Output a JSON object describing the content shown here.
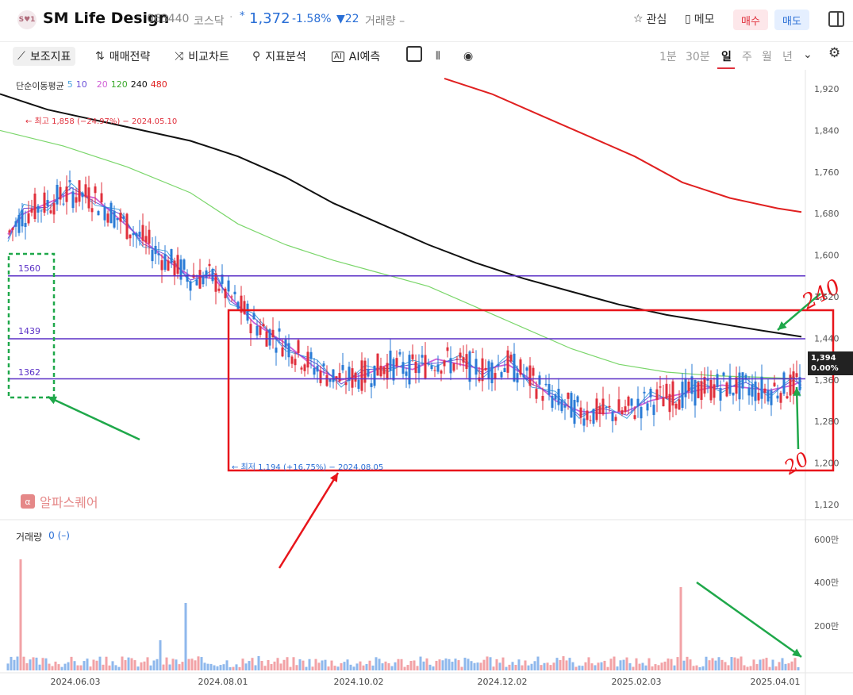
{
  "header": {
    "logo_text": "S♥1",
    "name": "SM Life Design",
    "code": "063440",
    "market": "코스닥",
    "separator": "·",
    "star": "*",
    "price": "1,372",
    "change_pct": "-1.58%",
    "change_abs": "▼22",
    "volume_label": "거래량 –",
    "fav_label": "관심",
    "memo_label": "메모",
    "buy_label": "매수",
    "sell_label": "매도"
  },
  "toolbar": {
    "indicators": "보조지표",
    "strategy": "매매전략",
    "compare": "비교차트",
    "analysis": "지표분석",
    "ai": "AI예측",
    "periods": [
      "1분",
      "30분",
      "일",
      "주",
      "월",
      "년"
    ],
    "active_period": "일"
  },
  "ma_legend": {
    "label": "단순이동평균",
    "ma5": "5",
    "ma10": "10",
    "ma20": "20",
    "ma120": "120",
    "ma240": "240",
    "ma480": "480",
    "colors": {
      "ma5": "#4aa3df",
      "ma10": "#6a4fd8",
      "ma20": "#d05ed6",
      "ma120": "#7ad66a",
      "ma240": "#111111",
      "ma480": "#e02020"
    }
  },
  "volume_legend": {
    "label": "거래량",
    "value": "0 (–)"
  },
  "watermark": {
    "icon": "α",
    "text": "알파스퀘어"
  },
  "current_price_tag": {
    "price": "1,394",
    "change": "0.00%"
  },
  "annotations": {
    "high": "← 최고 1,858 (−24.97%) − 2024.05.10",
    "low": "← 최저 1,194 (+16.75%) − 2024.08.05",
    "line_1560": "1560",
    "line_1439": "1439",
    "line_1362": "1362",
    "hand_240": "240",
    "hand_20": "20"
  },
  "chart_data": {
    "type": "candlestick",
    "y_ticks": [
      "1,920",
      "1,840",
      "1,760",
      "1,680",
      "1,600",
      "1,520",
      "1,440",
      "1,360",
      "1,280",
      "1,200",
      "1,120"
    ],
    "ylim": [
      1080,
      1940
    ],
    "x_ticks": [
      "2024.06.03",
      "2024.08.01",
      "2024.10.02",
      "2024.12.02",
      "2025.02.03",
      "2025.04.01"
    ],
    "volume_ticks": [
      "600만",
      "400만",
      "200만"
    ],
    "horizontal_lines": [
      1560,
      1439,
      1362
    ],
    "rectangle": {
      "y_top": 1496,
      "y_bottom": 1194
    },
    "ma240": [
      [
        0,
        1910
      ],
      [
        60,
        1880
      ],
      [
        120,
        1860
      ],
      [
        180,
        1840
      ],
      [
        240,
        1820
      ],
      [
        300,
        1790
      ],
      [
        360,
        1750
      ],
      [
        420,
        1700
      ],
      [
        480,
        1660
      ],
      [
        540,
        1620
      ],
      [
        600,
        1585
      ],
      [
        660,
        1555
      ],
      [
        720,
        1530
      ],
      [
        780,
        1505
      ],
      [
        840,
        1485
      ],
      [
        900,
        1470
      ],
      [
        960,
        1455
      ],
      [
        1010,
        1443
      ]
    ],
    "ma120": [
      [
        0,
        1840
      ],
      [
        80,
        1810
      ],
      [
        160,
        1770
      ],
      [
        240,
        1720
      ],
      [
        300,
        1660
      ],
      [
        360,
        1620
      ],
      [
        420,
        1590
      ],
      [
        480,
        1565
      ],
      [
        540,
        1540
      ],
      [
        600,
        1500
      ],
      [
        660,
        1460
      ],
      [
        720,
        1420
      ],
      [
        780,
        1390
      ],
      [
        840,
        1375
      ],
      [
        900,
        1368
      ],
      [
        960,
        1365
      ],
      [
        1010,
        1362
      ]
    ],
    "ma480": [
      [
        560,
        1940
      ],
      [
        620,
        1910
      ],
      [
        680,
        1870
      ],
      [
        740,
        1830
      ],
      [
        800,
        1790
      ],
      [
        860,
        1740
      ],
      [
        920,
        1710
      ],
      [
        980,
        1690
      ],
      [
        1010,
        1683
      ]
    ],
    "ma20": [
      [
        10,
        1640
      ],
      [
        30,
        1680
      ],
      [
        60,
        1700
      ],
      [
        90,
        1720
      ],
      [
        120,
        1710
      ],
      [
        150,
        1670
      ],
      [
        180,
        1630
      ],
      [
        210,
        1590
      ],
      [
        240,
        1560
      ],
      [
        270,
        1555
      ],
      [
        290,
        1520
      ],
      [
        320,
        1470
      ],
      [
        360,
        1430
      ],
      [
        400,
        1380
      ],
      [
        430,
        1360
      ],
      [
        460,
        1370
      ],
      [
        490,
        1390
      ],
      [
        520,
        1380
      ],
      [
        550,
        1400
      ],
      [
        580,
        1390
      ],
      [
        610,
        1380
      ],
      [
        640,
        1390
      ],
      [
        670,
        1360
      ],
      [
        700,
        1320
      ],
      [
        730,
        1300
      ],
      [
        760,
        1295
      ],
      [
        790,
        1300
      ],
      [
        820,
        1320
      ],
      [
        850,
        1330
      ],
      [
        880,
        1340
      ],
      [
        910,
        1350
      ],
      [
        940,
        1345
      ],
      [
        970,
        1340
      ],
      [
        1000,
        1350
      ],
      [
        1010,
        1358
      ]
    ]
  }
}
